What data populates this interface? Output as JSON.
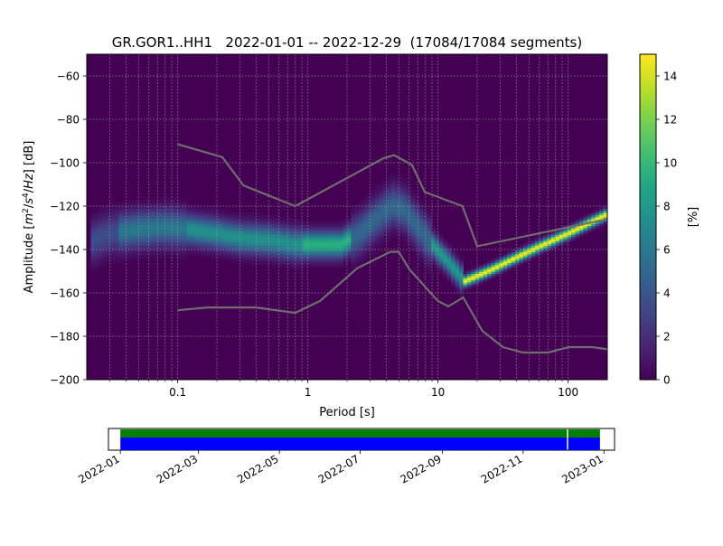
{
  "chart_data": {
    "type": "heatmap",
    "title": "GR.GOR1..HH1   2022-01-01 -- 2022-12-29  (17084/17084 segments)",
    "xlabel": "Period [s]",
    "ylabel_parts": [
      "Amplitude [",
      "m",
      "2",
      "/",
      "s",
      "4",
      "/",
      "Hz",
      "] [dB]"
    ],
    "x_scale": "log",
    "xlim": [
      0.02,
      200
    ],
    "ylim": [
      -200,
      -50
    ],
    "x_ticks": [
      {
        "value": 0.1,
        "label": "0.1"
      },
      {
        "value": 1,
        "label": "1"
      },
      {
        "value": 10,
        "label": "10"
      },
      {
        "value": 100,
        "label": "100"
      }
    ],
    "y_ticks": [
      {
        "value": -60,
        "label": "−60"
      },
      {
        "value": -80,
        "label": "−80"
      },
      {
        "value": -100,
        "label": "−100"
      },
      {
        "value": -120,
        "label": "−120"
      },
      {
        "value": -140,
        "label": "−140"
      },
      {
        "value": -160,
        "label": "−160"
      },
      {
        "value": -180,
        "label": "−180"
      },
      {
        "value": -200,
        "label": "−200"
      }
    ],
    "grid": true,
    "colorbar": {
      "label": "[%]",
      "range": [
        0,
        15
      ],
      "ticks": [
        {
          "value": 0,
          "label": "0"
        },
        {
          "value": 2,
          "label": "2"
        },
        {
          "value": 4,
          "label": "4"
        },
        {
          "value": 6,
          "label": "6"
        },
        {
          "value": 8,
          "label": "8"
        },
        {
          "value": 10,
          "label": "10"
        },
        {
          "value": 12,
          "label": "12"
        },
        {
          "value": 14,
          "label": "14"
        }
      ]
    },
    "density_ridge": [
      {
        "period": 0.02,
        "db": -138
      },
      {
        "period": 0.025,
        "db": -135
      },
      {
        "period": 0.03,
        "db": -133
      },
      {
        "period": 0.05,
        "db": -131
      },
      {
        "period": 0.08,
        "db": -130
      },
      {
        "period": 0.12,
        "db": -131
      },
      {
        "period": 0.2,
        "db": -133
      },
      {
        "period": 0.3,
        "db": -135
      },
      {
        "period": 0.5,
        "db": -136
      },
      {
        "period": 0.8,
        "db": -138
      },
      {
        "period": 1.2,
        "db": -138
      },
      {
        "period": 1.8,
        "db": -138
      },
      {
        "period": 2.5,
        "db": -133
      },
      {
        "period": 3.5,
        "db": -125
      },
      {
        "period": 4.5,
        "db": -120
      },
      {
        "period": 5.5,
        "db": -122
      },
      {
        "period": 7,
        "db": -130
      },
      {
        "period": 9,
        "db": -138
      },
      {
        "period": 12,
        "db": -146
      },
      {
        "period": 16,
        "db": -155
      },
      {
        "period": 25,
        "db": -150
      },
      {
        "period": 40,
        "db": -144
      },
      {
        "period": 60,
        "db": -139
      },
      {
        "period": 100,
        "db": -133
      },
      {
        "period": 200,
        "db": -124
      }
    ],
    "noise_models": [
      {
        "name": "",
        "points": [
          {
            "period": 0.1,
            "db": -91.5
          },
          {
            "period": 0.22,
            "db": -97.4
          },
          {
            "period": 0.32,
            "db": -110.5
          },
          {
            "period": 0.8,
            "db": -120
          },
          {
            "period": 3.8,
            "db": -98
          },
          {
            "period": 4.6,
            "db": -96.5
          },
          {
            "period": 6.3,
            "db": -101
          },
          {
            "period": 7.9,
            "db": -113.5
          },
          {
            "period": 15.4,
            "db": -120
          },
          {
            "period": 20,
            "db": -138.5
          },
          {
            "period": 200,
            "db": -126
          }
        ]
      },
      {
        "name": "",
        "points": [
          {
            "period": 0.1,
            "db": -168
          },
          {
            "period": 0.17,
            "db": -166.7
          },
          {
            "period": 0.4,
            "db": -166.7
          },
          {
            "period": 0.8,
            "db": -169.2
          },
          {
            "period": 1.24,
            "db": -163.7
          },
          {
            "period": 2.4,
            "db": -148.6
          },
          {
            "period": 4.3,
            "db": -141.1
          },
          {
            "period": 5,
            "db": -141.1
          },
          {
            "period": 6,
            "db": -149
          },
          {
            "period": 10,
            "db": -163.8
          },
          {
            "period": 12,
            "db": -166.2
          },
          {
            "period": 15.6,
            "db": -162.1
          },
          {
            "period": 21.9,
            "db": -177.5
          },
          {
            "period": 31.6,
            "db": -185
          },
          {
            "period": 45,
            "db": -187.5
          },
          {
            "period": 70,
            "db": -187.5
          },
          {
            "period": 101,
            "db": -185
          },
          {
            "period": 154,
            "db": -185
          },
          {
            "period": 200,
            "db": -186
          }
        ]
      }
    ]
  },
  "coverage": {
    "date_ticks": [
      "2022-01",
      "2022-03",
      "2022-05",
      "2022-07",
      "2022-09",
      "2022-11",
      "2023-01"
    ],
    "date_tick_values": [
      "2022-01-01",
      "2022-03-01",
      "2022-05-01",
      "2022-07-01",
      "2022-09-01",
      "2022-11-01",
      "2023-01-01"
    ],
    "range": [
      "2021-12-23",
      "2023-01-09"
    ],
    "data_span": [
      "2022-01-01",
      "2022-12-29"
    ],
    "gaps": [
      [
        "2022-12-04",
        "2022-12-05"
      ]
    ],
    "colors": {
      "processed": "#008000",
      "available": "#0000ff"
    }
  },
  "colors": {
    "background": "#440154",
    "noise_model": "#6e6e6e"
  }
}
